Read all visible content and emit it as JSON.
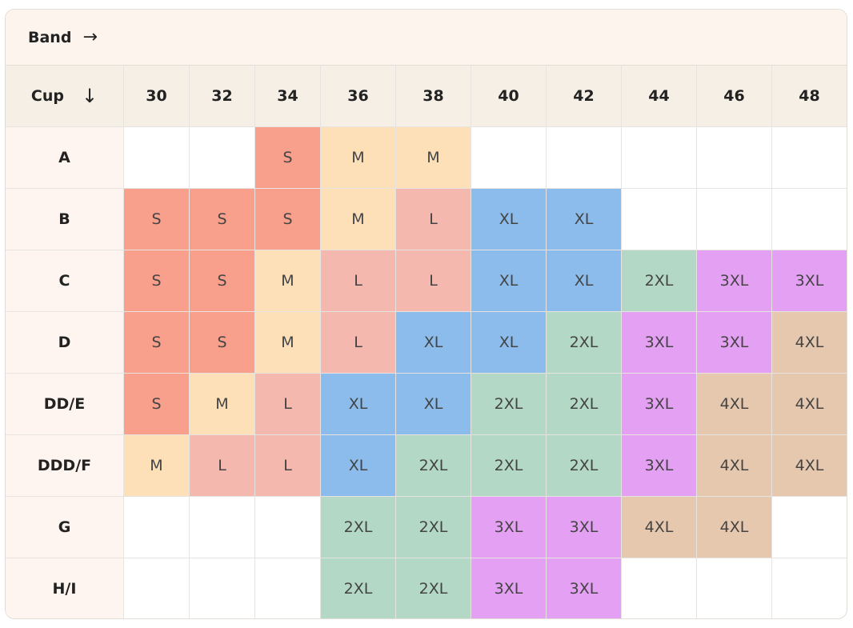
{
  "header": {
    "title": "Band",
    "arrow": "→"
  },
  "table": {
    "corner": {
      "label": "Cup",
      "arrow": "↓"
    },
    "bands": [
      "30",
      "32",
      "34",
      "36",
      "38",
      "40",
      "42",
      "44",
      "46",
      "48"
    ],
    "cups": [
      "A",
      "B",
      "C",
      "D",
      "DD/E",
      "DDD/F",
      "G",
      "H/I"
    ],
    "rows": [
      [
        null,
        null,
        "S",
        "M",
        "M",
        null,
        null,
        null,
        null,
        null
      ],
      [
        "S",
        "S",
        "S",
        "M",
        "L",
        "XL",
        "XL",
        null,
        null,
        null
      ],
      [
        "S",
        "S",
        "M",
        "L",
        "L",
        "XL",
        "XL",
        "2XL",
        "3XL",
        "3XL"
      ],
      [
        "S",
        "S",
        "M",
        "L",
        "XL",
        "XL",
        "2XL",
        "3XL",
        "3XL",
        "4XL"
      ],
      [
        "S",
        "M",
        "L",
        "XL",
        "XL",
        "2XL",
        "2XL",
        "3XL",
        "4XL",
        "4XL"
      ],
      [
        "M",
        "L",
        "L",
        "XL",
        "2XL",
        "2XL",
        "2XL",
        "3XL",
        "4XL",
        "4XL"
      ],
      [
        null,
        null,
        null,
        "2XL",
        "2XL",
        "3XL",
        "3XL",
        "4XL",
        "4XL",
        null
      ],
      [
        null,
        null,
        null,
        "2XL",
        "2XL",
        "3XL",
        "3XL",
        null,
        null,
        null
      ]
    ],
    "colors": {
      "S": "#f8a08b",
      "M": "#fde0b8",
      "L": "#f4b8ae",
      "XL": "#8cbcec",
      "2XL": "#b3d8c5",
      "3XL": "#e4a1f4",
      "4XL": "#e6c8ae"
    }
  }
}
